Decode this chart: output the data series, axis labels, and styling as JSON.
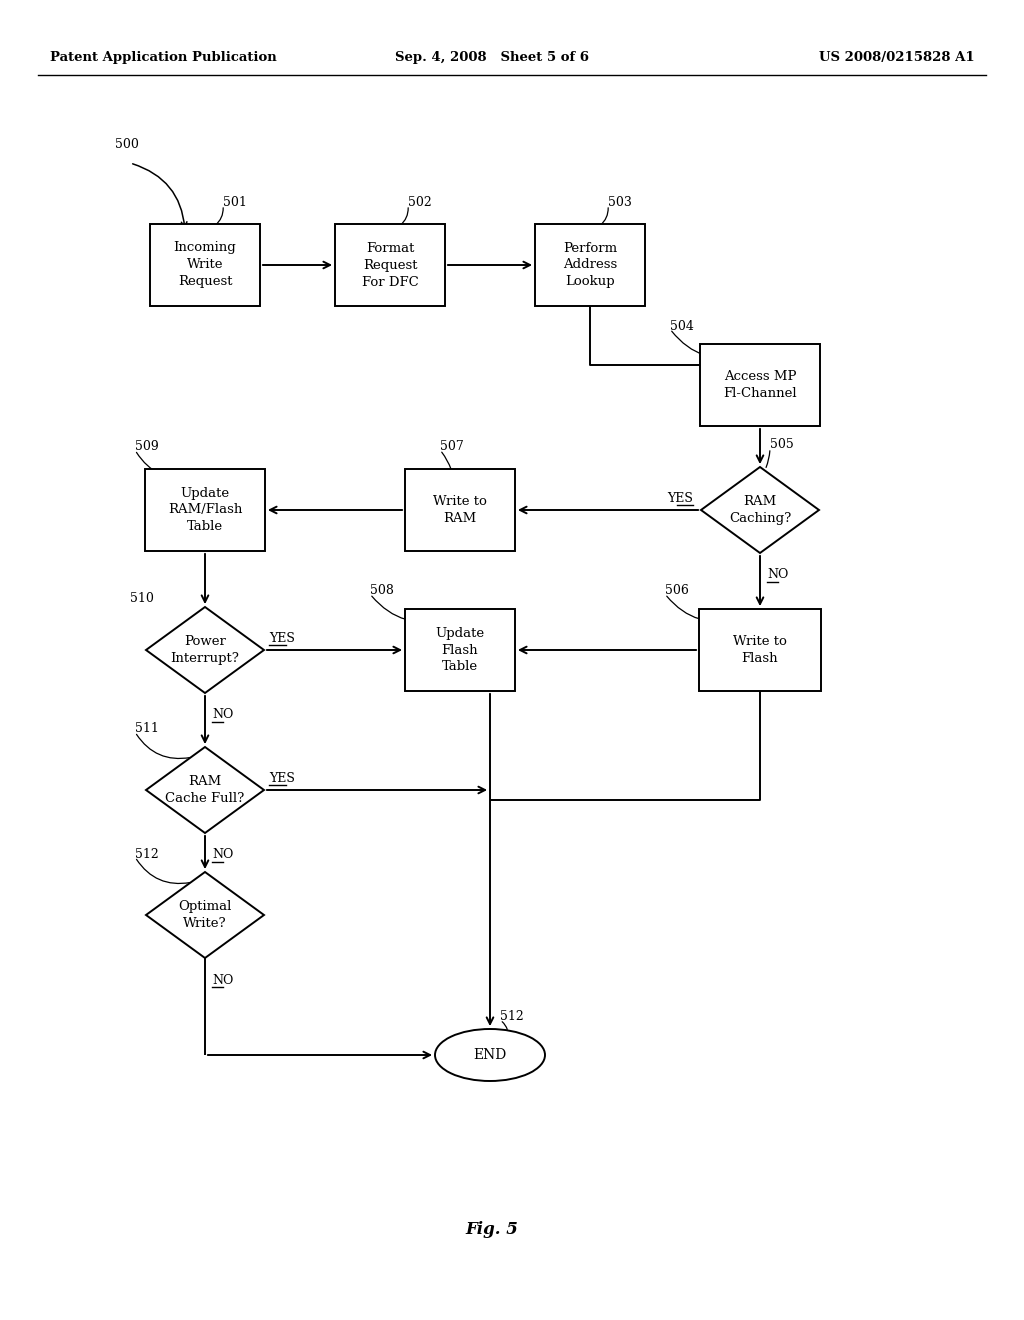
{
  "bg_color": "#ffffff",
  "header_left": "Patent Application Publication",
  "header_mid": "Sep. 4, 2008   Sheet 5 of 6",
  "header_right": "US 2008/0215828 A1",
  "fig_label": "Fig. 5",
  "nodes": {
    "501": {
      "label": "Incoming\nWrite\nRequest"
    },
    "502": {
      "label": "Format\nRequest\nFor DFC"
    },
    "503": {
      "label": "Perform\nAddress\nLookup"
    },
    "504": {
      "label": "Access MP\nFl-Channel"
    },
    "505": {
      "label": "RAM\nCaching?"
    },
    "506": {
      "label": "Write to\nFlash"
    },
    "507": {
      "label": "Write to\nRAM"
    },
    "508": {
      "label": "Update\nFlash\nTable"
    },
    "509": {
      "label": "Update\nRAM/Flash\nTable"
    },
    "510": {
      "label": "Power\nInterrupt?"
    },
    "511": {
      "label": "RAM\nCache Full?"
    },
    "512": {
      "label": "Optimal\nWrite?"
    },
    "END": {
      "label": "END"
    }
  }
}
